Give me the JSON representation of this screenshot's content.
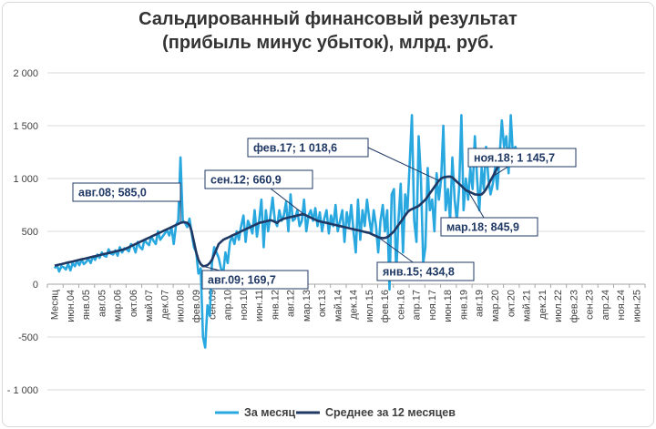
{
  "title_line1": "Сальдированный финансовый результат",
  "title_line2": "(прибыль минус убыток), млрд. руб.",
  "chart_data": {
    "type": "line",
    "ylim": [
      -1000,
      2000
    ],
    "yticks": [
      -1000,
      -500,
      0,
      500,
      1000,
      1500,
      2000
    ],
    "ytick_labels": [
      "- 1 000",
      "-500",
      "0",
      "500",
      "1 000",
      "1 500",
      "2 000"
    ],
    "grid": true,
    "legend_position": "bottom",
    "xtick_labels": [
      "Месяц",
      "июн.04",
      "янв.05",
      "авг.05",
      "мар.06",
      "окт.06",
      "май.07",
      "дек.07",
      "июл.08",
      "фев.09",
      "сен.09",
      "апр.10",
      "ноя.10",
      "июн.11",
      "янв.12",
      "авг.12",
      "мар.13",
      "окт.13",
      "май.14",
      "дек.14",
      "июл.15",
      "фев.16",
      "сен.16",
      "апр.17",
      "ноя.17",
      "июн.18",
      "янв.19",
      "авг.19",
      "мар.20",
      "окт.20",
      "май.21",
      "дек.21",
      "июл.22",
      "фев.23",
      "сен.23",
      "апр.24",
      "ноя.24",
      "июн.25"
    ],
    "series": [
      {
        "name": "За месяц",
        "color": "#29a8e0",
        "values": [
          150,
          180,
          120,
          170,
          160,
          140,
          190,
          130,
          200,
          170,
          220,
          180,
          230,
          190,
          210,
          240,
          200,
          260,
          230,
          280,
          250,
          300,
          270,
          260,
          330,
          290,
          280,
          320,
          270,
          350,
          300,
          340,
          330,
          310,
          380,
          360,
          300,
          400,
          350,
          330,
          420,
          390,
          370,
          450,
          410,
          380,
          500,
          420,
          450,
          480,
          510,
          460,
          540,
          380,
          560,
          600,
          1200,
          600,
          580,
          540,
          620,
          480,
          350,
          300,
          100,
          150,
          -500,
          -600,
          -200,
          -300,
          200,
          350,
          300,
          250,
          150,
          100,
          300,
          200,
          400,
          450,
          380,
          500,
          420,
          550,
          650,
          400,
          600,
          550,
          480,
          700,
          450,
          600,
          800,
          350,
          700,
          500,
          650,
          820,
          600,
          550,
          700,
          600,
          650,
          780,
          500,
          850,
          600,
          620,
          700,
          550,
          600,
          800,
          500,
          650,
          700,
          600,
          720,
          550,
          680,
          500,
          620,
          700,
          480,
          650,
          550,
          750,
          500,
          600,
          700,
          400,
          680,
          550,
          750,
          500,
          300,
          800,
          420,
          700,
          550,
          800,
          620,
          480,
          700,
          550,
          300,
          600,
          750,
          500,
          700,
          -50,
          850,
          900,
          100,
          600,
          950,
          300,
          850,
          700,
          1150,
          1600,
          600,
          400,
          1400,
          1000,
          200,
          350,
          1100,
          700,
          800,
          500,
          1050,
          800,
          1000,
          1500,
          700,
          900,
          600,
          1200,
          800,
          600,
          900,
          1600,
          700,
          1000,
          800,
          1100,
          900,
          1400,
          1000,
          700,
          1100,
          900,
          1300,
          1000,
          850,
          950,
          1100,
          900,
          1200,
          1550,
          1300,
          1400,
          1050,
          1600,
          1200,
          1300,
          1250
        ]
      },
      {
        "name": "Среднее за 12 месяцев",
        "color": "#1f3864",
        "values": [
          175,
          180,
          185,
          190,
          195,
          200,
          205,
          210,
          215,
          220,
          225,
          230,
          235,
          240,
          245,
          250,
          255,
          260,
          265,
          270,
          275,
          280,
          285,
          290,
          295,
          300,
          305,
          310,
          315,
          320,
          325,
          330,
          340,
          350,
          360,
          370,
          380,
          390,
          400,
          410,
          420,
          430,
          440,
          450,
          460,
          470,
          480,
          490,
          500,
          510,
          520,
          530,
          540,
          550,
          560,
          570,
          580,
          585,
          585,
          580,
          560,
          500,
          400,
          300,
          230,
          190,
          170,
          172,
          180,
          200,
          230,
          280,
          330,
          380,
          400,
          420,
          430,
          440,
          450,
          460,
          470,
          480,
          490,
          500,
          510,
          520,
          530,
          540,
          550,
          560,
          570,
          580,
          585,
          590,
          595,
          600,
          605,
          600,
          590,
          580,
          600,
          610,
          620,
          625,
          630,
          635,
          640,
          645,
          650,
          655,
          660,
          661,
          650,
          640,
          630,
          620,
          610,
          600,
          595,
          590,
          585,
          580,
          575,
          570,
          565,
          560,
          555,
          550,
          545,
          540,
          535,
          530,
          525,
          520,
          515,
          510,
          505,
          500,
          495,
          490,
          485,
          475,
          465,
          455,
          445,
          440,
          435,
          438,
          445,
          460,
          480,
          500,
          530,
          560,
          590,
          620,
          650,
          680,
          700,
          710,
          720,
          730,
          740,
          760,
          780,
          800,
          830,
          860,
          890,
          920,
          950,
          980,
          1000,
          1010,
          1015,
          1018,
          1019,
          1010,
          990,
          970,
          950,
          930,
          910,
          890,
          880,
          870,
          860,
          850,
          848,
          846,
          850,
          870,
          900,
          940,
          980,
          1020,
          1060,
          1100,
          1130,
          1145
        ]
      }
    ],
    "annotations": [
      {
        "label": "авг.08;   585,0"
      },
      {
        "label": "авг.09;   169,7"
      },
      {
        "label": "сен.12;   660,9"
      },
      {
        "label": "янв.15;   434,8"
      },
      {
        "label": "фев.17;  1 018,6"
      },
      {
        "label": "мар.18;   845,9"
      },
      {
        "label": "ноя.18;  1 145,7"
      }
    ]
  }
}
